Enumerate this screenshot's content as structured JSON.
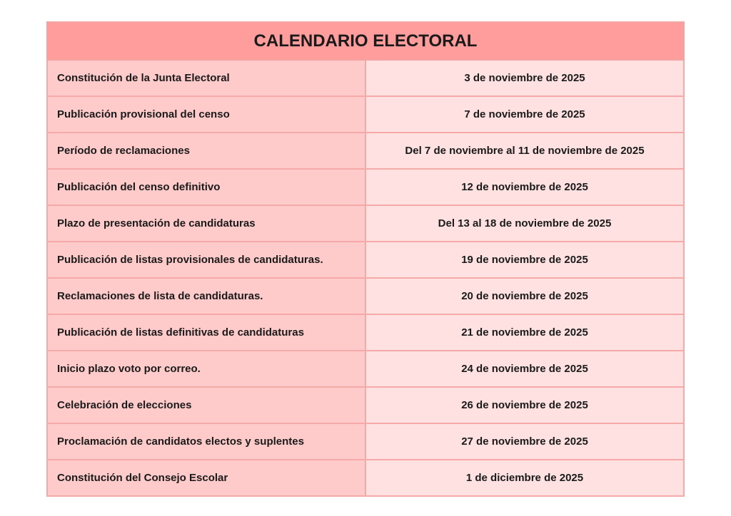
{
  "table": {
    "title": "CALENDARIO ELECTORAL",
    "rows": [
      [
        "Constitución de la Junta Electoral",
        "3 de noviembre de 2025"
      ],
      [
        "Publicación provisional del censo",
        "7 de noviembre de 2025"
      ],
      [
        "Período de reclamaciones",
        "Del 7 de noviembre al 11 de noviembre de 2025"
      ],
      [
        "Publicación del censo definitivo",
        "12 de noviembre de 2025"
      ],
      [
        "Plazo de presentación de candidaturas",
        "Del 13 al 18 de noviembre de 2025"
      ],
      [
        "Publicación de listas provisionales de candidaturas.",
        "19 de noviembre de 2025"
      ],
      [
        "Reclamaciones de lista de candidaturas.",
        "20 de noviembre de 2025"
      ],
      [
        "Publicación de listas definitivas de candidaturas",
        "21 de noviembre de 2025"
      ],
      [
        "Inicio plazo voto por correo.",
        "24 de noviembre de 2025"
      ],
      [
        "Celebración de elecciones",
        "26 de noviembre de 2025"
      ],
      [
        "Proclamación de candidatos electos y suplentes",
        "27 de noviembre de 2025"
      ],
      [
        "Constitución del Consejo Escolar",
        "1 de diciembre de 2025"
      ]
    ]
  }
}
